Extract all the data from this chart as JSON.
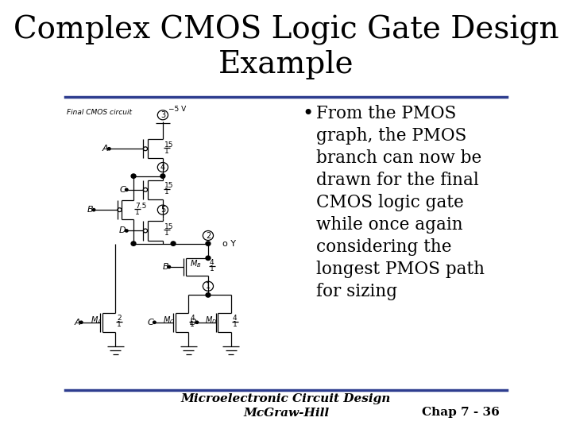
{
  "title_line1": "Complex CMOS Logic Gate Design",
  "title_line2": "Example",
  "title_fontsize": 28,
  "title_font": "serif",
  "bullet_text": "From the PMOS\ngraph, the PMOS\nbranch can now be\ndrawn for the final\nCMOS logic gate\nwhile once again\nconsidering the\nlongest PMOS path\nfor sizing",
  "bullet_fontsize": 15.5,
  "footer_left": "Microelectronic Circuit Design\nMcGraw-Hill",
  "footer_right": "Chap 7 - 36",
  "footer_fontsize": 11,
  "bg_color": "#ffffff",
  "title_color": "#000000",
  "line_color": "#2e3d8f",
  "text_color": "#000000",
  "circuit_label": "Final CMOS circuit"
}
